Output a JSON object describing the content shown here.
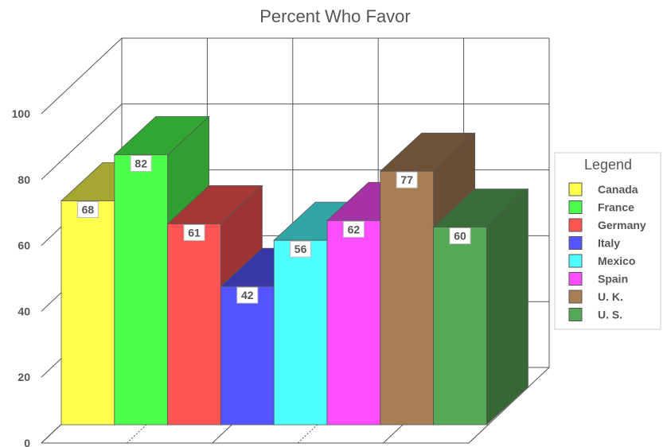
{
  "chart_data": {
    "type": "bar",
    "title": "Percent Who Favor",
    "xlabel": "",
    "ylabel": "",
    "ylim": [
      0,
      100
    ],
    "yticks": [
      0,
      20,
      40,
      60,
      80,
      100
    ],
    "categories": [
      "Canada",
      "France",
      "Germany",
      "Italy",
      "Mexico",
      "Spain",
      "U. K.",
      "U. S."
    ],
    "values": [
      68,
      82,
      61,
      42,
      56,
      62,
      77,
      60
    ],
    "colors": [
      "#ffff4d",
      "#4dff4d",
      "#ff5555",
      "#5555ff",
      "#4dffff",
      "#ff4dff",
      "#a87e55",
      "#55a855"
    ],
    "legend": {
      "title": "Legend",
      "placement": "right"
    },
    "grid": true,
    "style": "3d"
  }
}
